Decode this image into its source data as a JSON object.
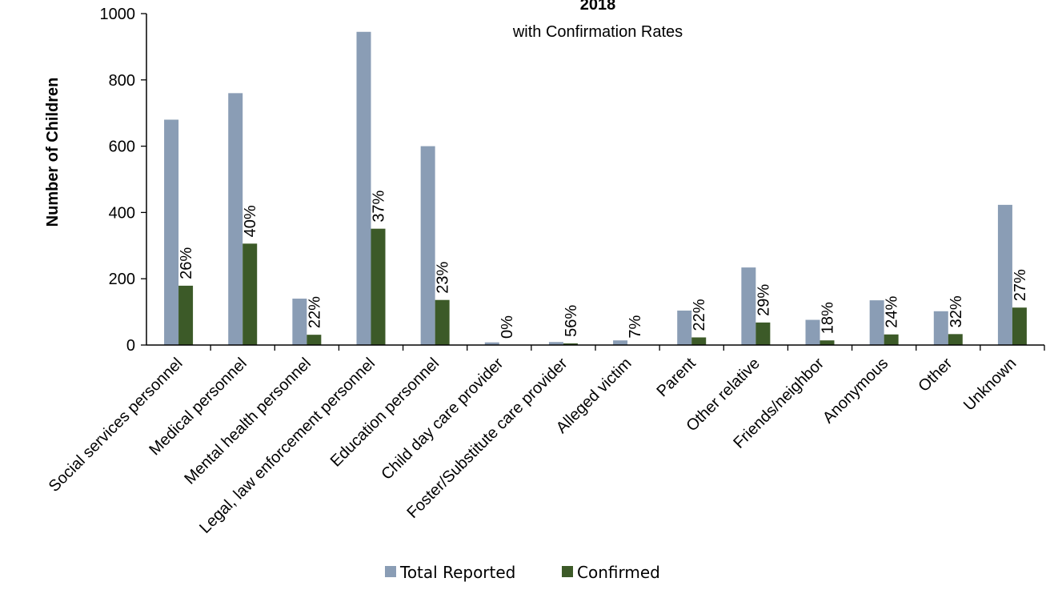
{
  "chart_data": {
    "type": "bar",
    "title": "2018",
    "subtitle": "with Confirmation Rates",
    "xlabel": "",
    "ylabel": "Number of Children",
    "ylim": [
      0,
      1000
    ],
    "yticks": [
      "0",
      "200",
      "400",
      "600",
      "800",
      "1000"
    ],
    "grid": false,
    "legend_position": "bottom-center",
    "categories": [
      "Social services personnel",
      "Medical personnel",
      "Mental health personnel",
      "Legal, law enforcement personnel",
      "Education personnel",
      "Child day care provider",
      "Foster/Substitute care provider",
      "Alleged victim",
      "Parent",
      "Other relative",
      "Friends/neighbor",
      "Anonymous",
      "Other",
      "Unknown"
    ],
    "series": [
      {
        "name": "Total  Reported",
        "color": "#8a9db5",
        "values": [
          680,
          760,
          140,
          945,
          600,
          8,
          9,
          14,
          104,
          234,
          76,
          135,
          102,
          423
        ]
      },
      {
        "name": "Confirmed",
        "color": "#3c5a28",
        "values": [
          179,
          306,
          31,
          351,
          136,
          0,
          5,
          1,
          23,
          68,
          14,
          32,
          33,
          113
        ]
      }
    ],
    "rate_labels": [
      "26%",
      "40%",
      "22%",
      "37%",
      "23%",
      "0%",
      "56%",
      "7%",
      "22%",
      "29%",
      "18%",
      "24%",
      "32%",
      "27%"
    ]
  }
}
